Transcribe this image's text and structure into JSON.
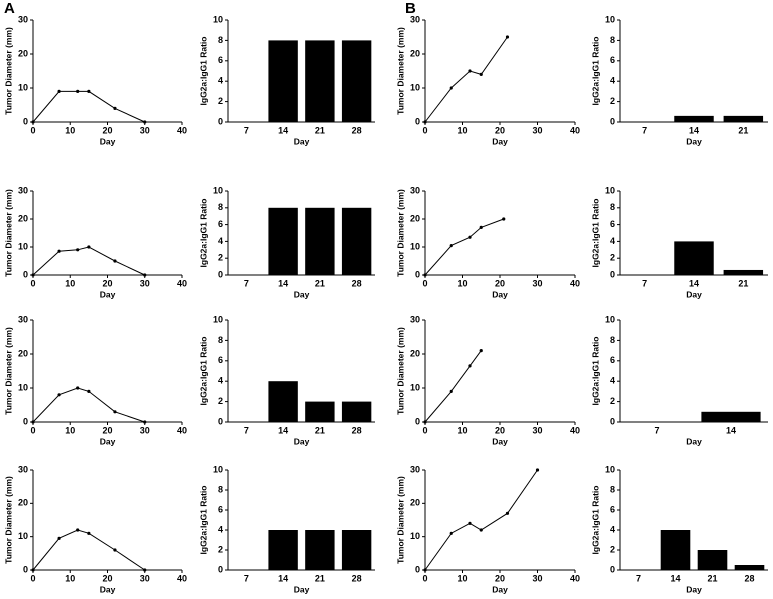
{
  "panel_labels": [
    "A",
    "B"
  ],
  "chart_data": [
    {
      "type": "line",
      "x": [
        0,
        7,
        12,
        15,
        22,
        30
      ],
      "values": [
        0,
        9,
        9,
        9,
        4,
        0
      ],
      "xlim": [
        0,
        40
      ],
      "xticks": [
        0,
        10,
        20,
        30,
        40
      ],
      "ylim": [
        0,
        30
      ],
      "yticks": [
        0,
        10,
        20,
        30
      ],
      "xlabel": "Day",
      "ylabel": "Tumor Diameter (mm)",
      "color": "#000000"
    },
    {
      "type": "bar",
      "categories": [
        "7",
        "14",
        "21",
        "28"
      ],
      "values": [
        null,
        8,
        8,
        8
      ],
      "ylim": [
        0,
        10
      ],
      "yticks": [
        0,
        2,
        4,
        6,
        8,
        10
      ],
      "xlabel": "Day",
      "ylabel": "IgG2a:IgG1 Ratio",
      "color": "#000000"
    },
    {
      "type": "line",
      "x": [
        0,
        7,
        12,
        15,
        22
      ],
      "values": [
        0,
        10,
        15,
        14,
        25
      ],
      "xlim": [
        0,
        40
      ],
      "xticks": [
        0,
        10,
        20,
        30,
        40
      ],
      "ylim": [
        0,
        30
      ],
      "yticks": [
        0,
        10,
        20,
        30
      ],
      "xlabel": "Day",
      "ylabel": "Tumor Diameter (mm)",
      "color": "#000000"
    },
    {
      "type": "bar",
      "categories": [
        "7",
        "14",
        "21"
      ],
      "values": [
        null,
        0.6,
        0.6
      ],
      "ylim": [
        0,
        10
      ],
      "yticks": [
        0,
        2,
        4,
        6,
        8,
        10
      ],
      "xlabel": "Day",
      "ylabel": "IgG2a:IgG1 Ratio",
      "color": "#000000"
    },
    {
      "type": "line",
      "x": [
        0,
        7,
        12,
        15,
        22,
        30
      ],
      "values": [
        0,
        8.5,
        9,
        10,
        5,
        0
      ],
      "xlim": [
        0,
        40
      ],
      "xticks": [
        0,
        10,
        20,
        30,
        40
      ],
      "ylim": [
        0,
        30
      ],
      "yticks": [
        0,
        10,
        20,
        30
      ],
      "xlabel": "Day",
      "ylabel": "Tumor Diameter (mm)",
      "color": "#000000"
    },
    {
      "type": "bar",
      "categories": [
        "7",
        "14",
        "21",
        "28"
      ],
      "values": [
        null,
        8,
        8,
        8
      ],
      "ylim": [
        0,
        10
      ],
      "yticks": [
        0,
        2,
        4,
        6,
        8,
        10
      ],
      "xlabel": "Day",
      "ylabel": "IgG2a:IgG1 Ratio",
      "color": "#000000"
    },
    {
      "type": "line",
      "x": [
        0,
        7,
        12,
        15,
        21
      ],
      "values": [
        0,
        10.5,
        13.5,
        17,
        20
      ],
      "xlim": [
        0,
        40
      ],
      "xticks": [
        0,
        10,
        20,
        30,
        40
      ],
      "ylim": [
        0,
        30
      ],
      "yticks": [
        0,
        10,
        20,
        30
      ],
      "xlabel": "Day",
      "ylabel": "Tumor Diameter (mm)",
      "color": "#000000"
    },
    {
      "type": "bar",
      "categories": [
        "7",
        "14",
        "21"
      ],
      "values": [
        null,
        4,
        0.6
      ],
      "ylim": [
        0,
        10
      ],
      "yticks": [
        0,
        2,
        4,
        6,
        8,
        10
      ],
      "xlabel": "Day",
      "ylabel": "IgG2a:IgG1 Ratio",
      "color": "#000000"
    },
    {
      "type": "line",
      "x": [
        0,
        7,
        12,
        15,
        22,
        30
      ],
      "values": [
        0,
        8,
        10,
        9,
        3,
        0
      ],
      "xlim": [
        0,
        40
      ],
      "xticks": [
        0,
        10,
        20,
        30,
        40
      ],
      "ylim": [
        0,
        30
      ],
      "yticks": [
        0,
        10,
        20,
        30
      ],
      "xlabel": "Day",
      "ylabel": "Tumor Diameter (mm)",
      "color": "#000000"
    },
    {
      "type": "bar",
      "categories": [
        "7",
        "14",
        "21",
        "28"
      ],
      "values": [
        null,
        4,
        2,
        2
      ],
      "ylim": [
        0,
        10
      ],
      "yticks": [
        0,
        2,
        4,
        6,
        8,
        10
      ],
      "xlabel": "Day",
      "ylabel": "IgG2a:IgG1 Ratio",
      "color": "#000000"
    },
    {
      "type": "line",
      "x": [
        0,
        7,
        12,
        15
      ],
      "values": [
        0,
        9,
        16.5,
        21
      ],
      "xlim": [
        0,
        40
      ],
      "xticks": [
        0,
        10,
        20,
        30,
        40
      ],
      "ylim": [
        0,
        30
      ],
      "yticks": [
        0,
        10,
        20,
        30
      ],
      "xlabel": "Day",
      "ylabel": "Tumor Diameter (mm)",
      "color": "#000000"
    },
    {
      "type": "bar",
      "categories": [
        "7",
        "14"
      ],
      "values": [
        null,
        1
      ],
      "ylim": [
        0,
        10
      ],
      "yticks": [
        0,
        2,
        4,
        6,
        8,
        10
      ],
      "xlabel": "Day",
      "ylabel": "IgG2a:IgG1 Ratio",
      "color": "#000000"
    },
    {
      "type": "line",
      "x": [
        0,
        7,
        12,
        15,
        22,
        30
      ],
      "values": [
        0,
        9.5,
        12,
        11,
        6,
        0
      ],
      "xlim": [
        0,
        40
      ],
      "xticks": [
        0,
        10,
        20,
        30,
        40
      ],
      "ylim": [
        0,
        30
      ],
      "yticks": [
        0,
        10,
        20,
        30
      ],
      "xlabel": "Day",
      "ylabel": "Tumor Diameter (mm)",
      "color": "#000000"
    },
    {
      "type": "bar",
      "categories": [
        "7",
        "14",
        "21",
        "28"
      ],
      "values": [
        null,
        4,
        4,
        4
      ],
      "ylim": [
        0,
        10
      ],
      "yticks": [
        0,
        2,
        4,
        6,
        8,
        10
      ],
      "xlabel": "Day",
      "ylabel": "IgG2a:IgG1 Ratio",
      "color": "#000000"
    },
    {
      "type": "line",
      "x": [
        0,
        7,
        12,
        15,
        22,
        30
      ],
      "values": [
        0,
        11,
        14,
        12,
        17,
        30
      ],
      "xlim": [
        0,
        40
      ],
      "xticks": [
        0,
        10,
        20,
        30,
        40
      ],
      "ylim": [
        0,
        30
      ],
      "yticks": [
        0,
        10,
        20,
        30
      ],
      "xlabel": "Day",
      "ylabel": "Tumor Diameter (mm)",
      "color": "#000000"
    },
    {
      "type": "bar",
      "categories": [
        "7",
        "14",
        "21",
        "28"
      ],
      "values": [
        null,
        4,
        2,
        0.5
      ],
      "ylim": [
        0,
        10
      ],
      "yticks": [
        0,
        2,
        4,
        6,
        8,
        10
      ],
      "xlabel": "Day",
      "ylabel": "IgG2a:IgG1 Ratio",
      "color": "#000000"
    }
  ]
}
